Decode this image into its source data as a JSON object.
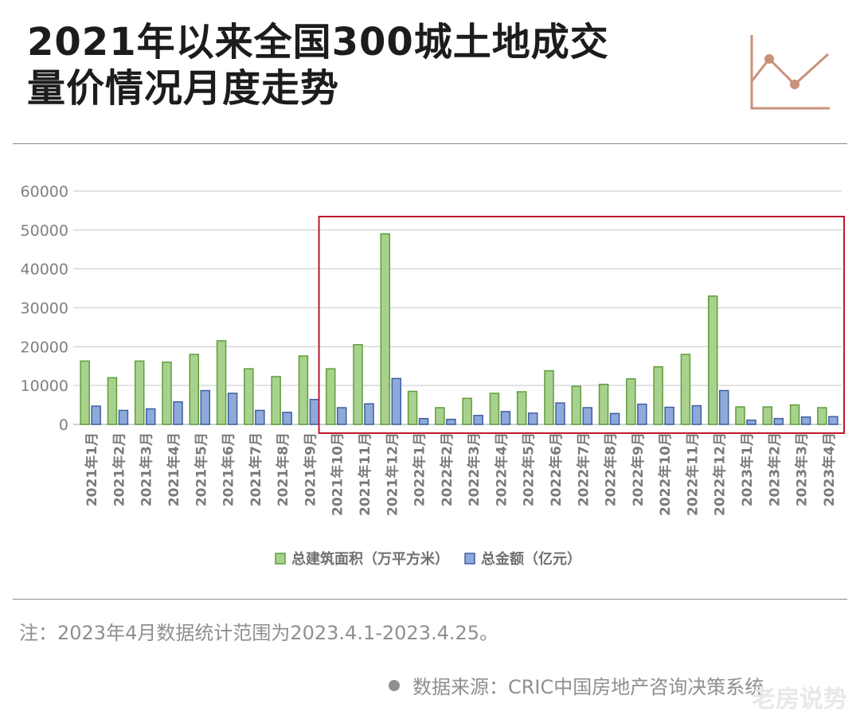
{
  "header": {
    "title_line1": "2021年以来全国300城土地成交",
    "title_line2": "量价情况月度走势"
  },
  "colors": {
    "area_fill": "#a9d18e",
    "area_stroke": "#5e9e3a",
    "amount_fill": "#8eaadb",
    "amount_stroke": "#3f5f9e",
    "highlight_box": "#c0182a",
    "icon": "#c9917a"
  },
  "chart_data": {
    "type": "bar",
    "categories": [
      "2021年1月",
      "2021年2月",
      "2021年3月",
      "2021年4月",
      "2021年5月",
      "2021年6月",
      "2021年7月",
      "2021年8月",
      "2021年9月",
      "2021年10月",
      "2021年11月",
      "2021年12月",
      "2022年1月",
      "2022年2月",
      "2022年3月",
      "2022年4月",
      "2022年5月",
      "2022年6月",
      "2022年7月",
      "2022年8月",
      "2022年9月",
      "2022年10月",
      "2022年11月",
      "2022年12月",
      "2023年1月",
      "2023年2月",
      "2023年3月",
      "2023年4月"
    ],
    "series": [
      {
        "name": "总建筑面积（万平方米）",
        "values": [
          16300,
          12000,
          16300,
          16000,
          18000,
          21500,
          14300,
          12300,
          17600,
          14300,
          20500,
          49000,
          8500,
          4300,
          6700,
          8000,
          8400,
          13800,
          9800,
          10300,
          11700,
          14800,
          18000,
          33000,
          4500,
          4500,
          5000,
          4300
        ]
      },
      {
        "name": "总金额（亿元）",
        "values": [
          4700,
          3600,
          4000,
          5800,
          8700,
          8000,
          3600,
          3100,
          6400,
          4300,
          5300,
          11800,
          1500,
          1300,
          2300,
          3300,
          2900,
          5500,
          4300,
          2800,
          5200,
          4400,
          4800,
          8700,
          1100,
          1500,
          1900,
          2000
        ]
      }
    ],
    "yticks": [
      "0",
      "10000",
      "20000",
      "30000",
      "40000",
      "50000",
      "60000"
    ],
    "ylim": [
      0,
      60000
    ],
    "highlight_range": [
      "2021年10月",
      "2023年4月"
    ],
    "grid": true,
    "legend": "bottom"
  },
  "footer": {
    "note": "注：2023年4月数据统计范围为2023.4.1-2023.4.25。",
    "source": "数据来源：CRIC中国房地产咨询决策系统",
    "watermark": "老房说势"
  }
}
